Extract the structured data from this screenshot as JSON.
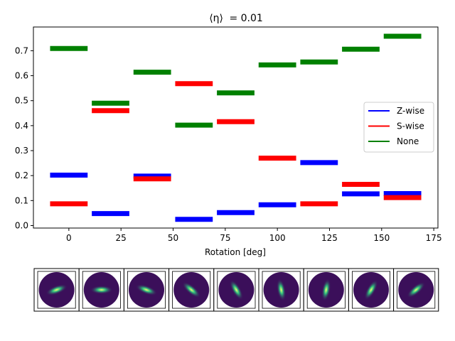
{
  "chart_data": {
    "type": "bar",
    "title_prefix": "⟨η⟩",
    "title_suffix": "=  0.01",
    "xlabel": "Rotation [deg]",
    "ylabel": "",
    "xlim": [
      -17,
      177
    ],
    "ylim": [
      -0.01,
      0.795
    ],
    "xticks": [
      0,
      25,
      50,
      75,
      100,
      125,
      150,
      175
    ],
    "yticks": [
      0.0,
      0.1,
      0.2,
      0.3,
      0.4,
      0.5,
      0.6,
      0.7
    ],
    "bar_width_deg": 18,
    "legend_position": "center-right",
    "x": [
      0,
      20,
      40,
      60,
      80,
      100,
      120,
      140,
      160
    ],
    "series": [
      {
        "name": "Z-wise",
        "color": "#0000ff",
        "values": [
          0.202,
          0.048,
          0.198,
          0.025,
          0.052,
          0.083,
          0.252,
          0.127,
          0.128
        ]
      },
      {
        "name": "S-wise",
        "color": "#ff0000",
        "values": [
          0.087,
          0.46,
          0.187,
          0.568,
          0.416,
          0.27,
          0.087,
          0.165,
          0.112
        ]
      },
      {
        "name": "None",
        "color": "#008000",
        "values": [
          0.709,
          0.49,
          0.614,
          0.402,
          0.531,
          0.643,
          0.655,
          0.706,
          0.758
        ]
      }
    ]
  },
  "thumbnails": {
    "count": 9,
    "background_color": "#3b0f5a",
    "galaxy_core_color": "#f9f871",
    "galaxy_mid_color": "#2ec27e"
  }
}
